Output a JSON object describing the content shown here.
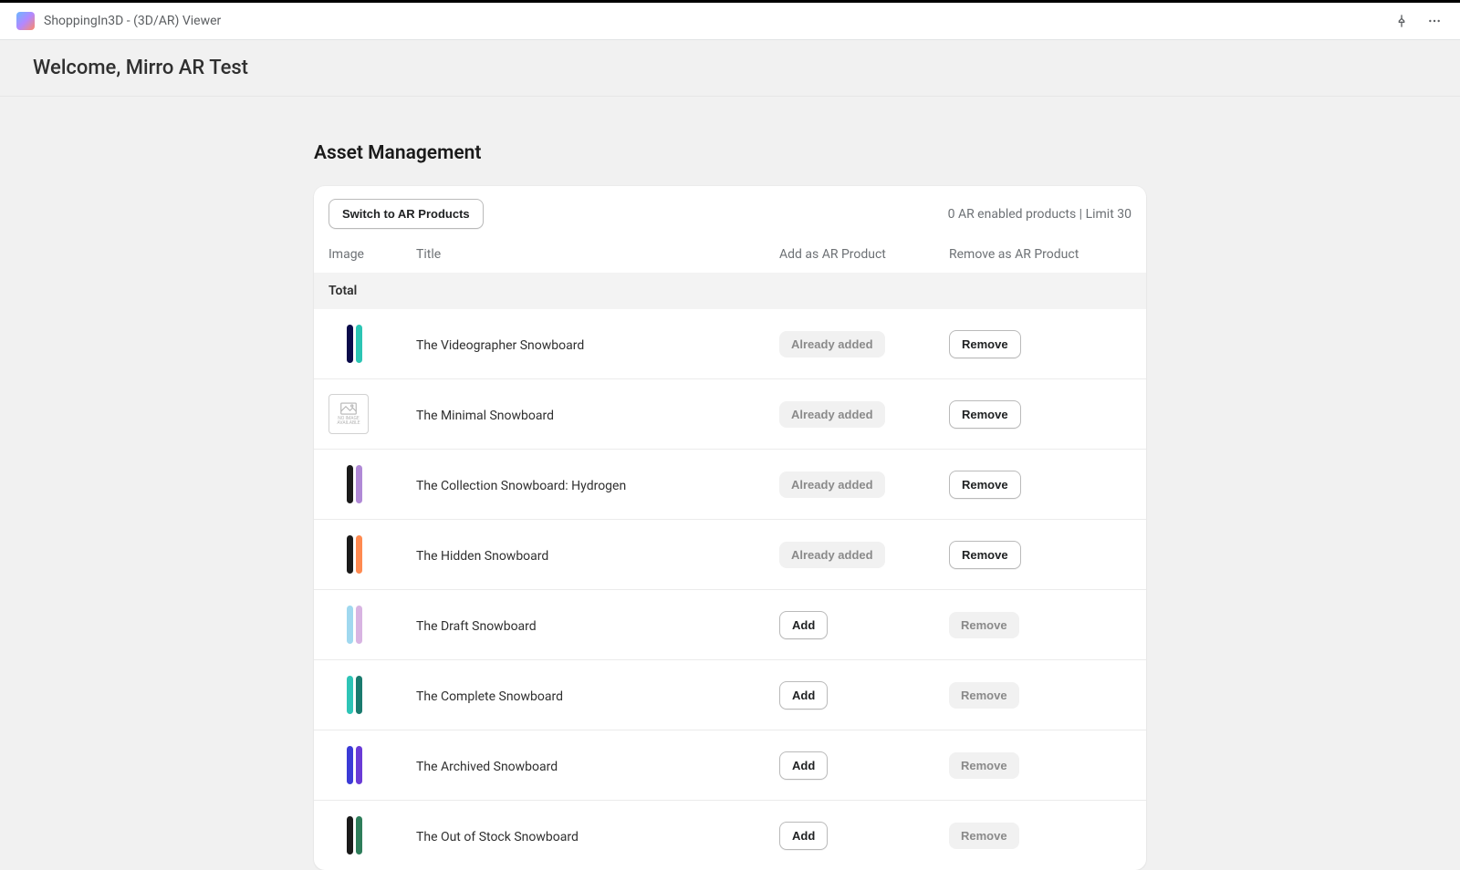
{
  "titlebar": {
    "app_name": "ShoppingIn3D - (3D/AR) Viewer"
  },
  "welcome": {
    "text": "Welcome, Mirro AR Test"
  },
  "section": {
    "title": "Asset Management"
  },
  "card": {
    "switch_label": "Switch to AR Products",
    "limit_text": "0 AR enabled products | Limit 30"
  },
  "columns": {
    "image": "Image",
    "title": "Title",
    "add": "Add as AR Product",
    "remove": "Remove as AR Product"
  },
  "total_label": "Total",
  "buttons": {
    "already_added": "Already added",
    "add": "Add",
    "remove": "Remove",
    "remove_disabled": "Remove"
  },
  "no_image_label": "NO IMAGE AVAILABLE",
  "products": [
    {
      "title": "The Videographer Snowboard",
      "added": true,
      "thumb_type": "boards",
      "board_colors": [
        "#0a0a4a",
        "#2cc5b4"
      ]
    },
    {
      "title": "The Minimal Snowboard",
      "added": true,
      "thumb_type": "no_image",
      "board_colors": []
    },
    {
      "title": "The Collection Snowboard: Hydrogen",
      "added": true,
      "thumb_type": "boards",
      "board_colors": [
        "#1a1a1a",
        "#b089d6"
      ]
    },
    {
      "title": "The Hidden Snowboard",
      "added": true,
      "thumb_type": "boards",
      "board_colors": [
        "#1a1a1a",
        "#ff8a50"
      ]
    },
    {
      "title": "The Draft Snowboard",
      "added": false,
      "thumb_type": "boards",
      "board_colors": [
        "#a0d8ef",
        "#d8b4e2"
      ]
    },
    {
      "title": "The Complete Snowboard",
      "added": false,
      "thumb_type": "boards",
      "board_colors": [
        "#2ec4b6",
        "#1a7a6e"
      ]
    },
    {
      "title": "The Archived Snowboard",
      "added": false,
      "thumb_type": "boards",
      "board_colors": [
        "#3b3bd6",
        "#6a3bd6"
      ]
    },
    {
      "title": "The Out of Stock Snowboard",
      "added": false,
      "thumb_type": "boards",
      "board_colors": [
        "#1a1a1a",
        "#2e7d5a"
      ]
    }
  ]
}
